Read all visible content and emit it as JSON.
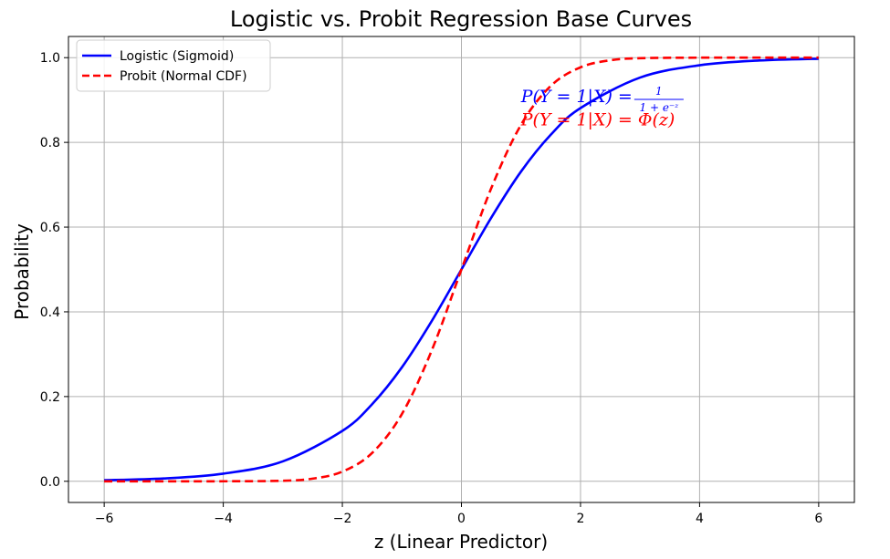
{
  "chart_data": {
    "type": "line",
    "title": "Logistic vs. Probit Regression Base Curves",
    "xlabel": "z (Linear Predictor)",
    "ylabel": "Probability",
    "xlim": [
      -6.6,
      6.6
    ],
    "ylim": [
      -0.05,
      1.05
    ],
    "x_ticks": [
      -6,
      -4,
      -2,
      0,
      2,
      4,
      6
    ],
    "x_tick_labels": [
      "−6",
      "−4",
      "−2",
      "0",
      "2",
      "4",
      "6"
    ],
    "y_ticks": [
      0.0,
      0.2,
      0.4,
      0.6,
      0.8,
      1.0
    ],
    "y_tick_labels": [
      "0.0",
      "0.2",
      "0.4",
      "0.6",
      "0.8",
      "1.0"
    ],
    "grid": true,
    "legend_position": "upper-left",
    "series": [
      {
        "name": "Logistic (Sigmoid)",
        "color": "#0000ff",
        "style": "solid",
        "x": [
          -6,
          -5,
          -4,
          -3,
          -2,
          -1.5,
          -1,
          -0.5,
          0,
          0.5,
          1,
          1.5,
          2,
          3,
          4,
          5,
          6
        ],
        "y": [
          0.0025,
          0.0067,
          0.018,
          0.047,
          0.119,
          0.182,
          0.269,
          0.378,
          0.5,
          0.622,
          0.731,
          0.818,
          0.881,
          0.953,
          0.982,
          0.9933,
          0.9975
        ]
      },
      {
        "name": "Probit (Normal CDF)",
        "color": "#ff0000",
        "style": "dashed",
        "x": [
          -6,
          -4,
          -3,
          -2.5,
          -2,
          -1.5,
          -1,
          -0.5,
          0,
          0.5,
          1,
          1.5,
          2,
          2.5,
          3,
          4,
          6
        ],
        "y": [
          0.0,
          3e-05,
          0.0013,
          0.0062,
          0.0228,
          0.0668,
          0.1587,
          0.3085,
          0.5,
          0.6915,
          0.8413,
          0.9332,
          0.9772,
          0.9938,
          0.9987,
          0.99997,
          1.0
        ]
      }
    ],
    "annotations": [
      {
        "text": "P(Y = 1|X) = ",
        "fraction_numerator": "1",
        "fraction_denominator": "1 + e⁻ᶻ",
        "color": "#0000ff",
        "x": 1.0,
        "y": 0.91
      },
      {
        "text": "P(Y = 1|X) = Φ(z)",
        "color": "#ff0000",
        "x": 1.0,
        "y": 0.855
      }
    ]
  }
}
